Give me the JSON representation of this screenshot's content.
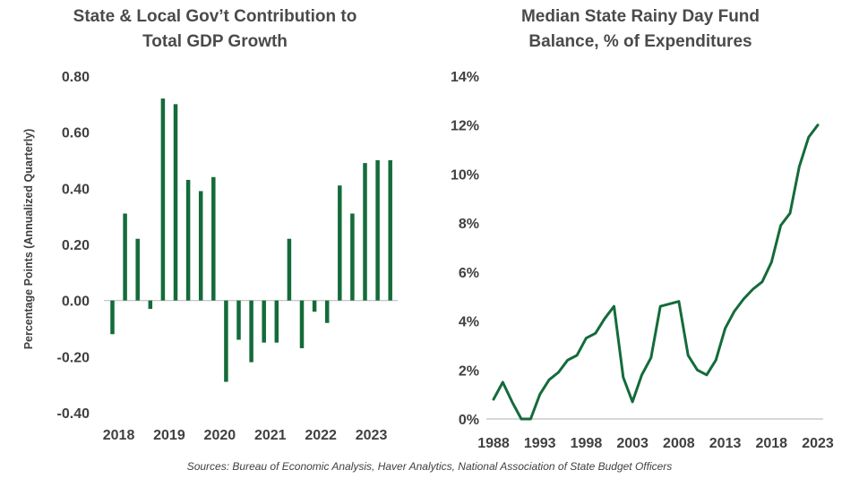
{
  "colors": {
    "series": "#146b3a",
    "axis": "#bfbfbf",
    "text": "#404040"
  },
  "source": "Sources: Bureau of Economic Analysis, Haver Analytics, National Association of State Budget Officers",
  "chart_data": [
    {
      "type": "bar",
      "title": "State & Local Gov’t Contribution  to\nTotal GDP Growth",
      "xlabel": "",
      "ylabel": "Percentage Points (Annualized Quarterly)",
      "ylim": [
        -0.4,
        0.8
      ],
      "yticks": [
        "0.80",
        "0.60",
        "0.40",
        "0.20",
        "0.00",
        "-0.20",
        "-0.40"
      ],
      "xticks": [
        "2018",
        "2019",
        "2020",
        "2021",
        "2022",
        "2023"
      ],
      "categories": [
        "2018Q1",
        "2018Q2",
        "2018Q3",
        "2018Q4",
        "2019Q1",
        "2019Q2",
        "2019Q3",
        "2019Q4",
        "2020Q1",
        "2020Q2",
        "2020Q3",
        "2020Q4",
        "2021Q1",
        "2021Q2",
        "2021Q3",
        "2021Q4",
        "2022Q1",
        "2022Q2",
        "2022Q3",
        "2022Q4",
        "2023Q1",
        "2023Q2",
        "2023Q3",
        "2023Q4"
      ],
      "values": [
        -0.12,
        0.31,
        0.22,
        -0.03,
        0.72,
        0.7,
        0.43,
        0.39,
        0.44,
        -0.29,
        -0.14,
        -0.22,
        -0.15,
        -0.15,
        0.22,
        -0.17,
        -0.04,
        -0.08,
        0.41,
        0.31,
        0.49,
        0.5,
        0.5,
        null
      ],
      "grid": false,
      "legend": "none"
    },
    {
      "type": "line",
      "title": "Median State Rainy Day Fund\nBalance, % of Expenditures",
      "xlabel": "",
      "ylabel": "",
      "ylim": [
        0,
        14
      ],
      "yticks": [
        "14%",
        "12%",
        "10%",
        "8%",
        "6%",
        "4%",
        "2%",
        "0%"
      ],
      "xticks": [
        "1988",
        "1993",
        "1998",
        "2003",
        "2008",
        "2013",
        "2018",
        "2023"
      ],
      "xlim": [
        1988,
        2023
      ],
      "x": [
        1988,
        1989,
        1990,
        1991,
        1992,
        1993,
        1994,
        1995,
        1996,
        1997,
        1998,
        1999,
        2000,
        2001,
        2002,
        2003,
        2004,
        2005,
        2006,
        2007,
        2008,
        2009,
        2010,
        2011,
        2012,
        2013,
        2014,
        2015,
        2016,
        2017,
        2018,
        2019,
        2020,
        2021,
        2022,
        2023
      ],
      "values": [
        0.8,
        1.5,
        0.7,
        0.0,
        0.0,
        1.0,
        1.6,
        1.9,
        2.4,
        2.6,
        3.3,
        3.5,
        4.1,
        4.6,
        1.7,
        0.7,
        1.8,
        2.5,
        4.6,
        4.7,
        4.8,
        2.6,
        2.0,
        1.8,
        2.4,
        3.7,
        4.4,
        4.9,
        5.3,
        5.6,
        6.4,
        7.9,
        8.4,
        10.3,
        11.5,
        12.0
      ],
      "grid": false,
      "legend": "none"
    }
  ]
}
